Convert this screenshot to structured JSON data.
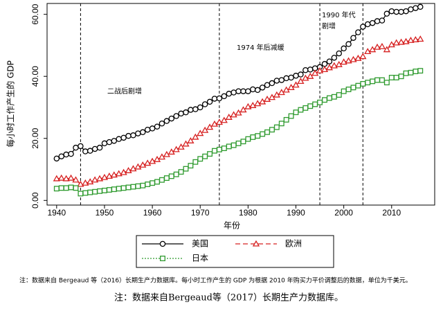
{
  "chart_data": {
    "type": "line",
    "y_label": "每小时工作产生的 GDP",
    "x_label": "年份",
    "x": [
      1940,
      1941,
      1942,
      1943,
      1944,
      1945,
      1946,
      1947,
      1948,
      1949,
      1950,
      1951,
      1952,
      1953,
      1954,
      1955,
      1956,
      1957,
      1958,
      1959,
      1960,
      1961,
      1962,
      1963,
      1964,
      1965,
      1966,
      1967,
      1968,
      1969,
      1970,
      1971,
      1972,
      1973,
      1974,
      1975,
      1976,
      1977,
      1978,
      1979,
      1980,
      1981,
      1982,
      1983,
      1984,
      1985,
      1986,
      1987,
      1988,
      1989,
      1990,
      1991,
      1992,
      1993,
      1994,
      1995,
      1996,
      1997,
      1998,
      1999,
      2000,
      2001,
      2002,
      2003,
      2004,
      2005,
      2006,
      2007,
      2008,
      2009,
      2010,
      2011,
      2012,
      2013,
      2014,
      2015,
      2016
    ],
    "series": [
      {
        "name": "美国",
        "color": "#000000",
        "marker": "circle",
        "dash": "solid",
        "values": [
          13.5,
          14.2,
          14.8,
          15.0,
          17.0,
          17.5,
          15.8,
          16.0,
          16.6,
          17.0,
          18.4,
          18.8,
          19.2,
          19.8,
          20.2,
          20.8,
          21.0,
          21.6,
          22.0,
          22.8,
          23.2,
          23.8,
          24.8,
          25.6,
          26.4,
          27.2,
          28.0,
          28.4,
          29.2,
          29.4,
          30.0,
          31.0,
          31.8,
          32.8,
          32.9,
          33.6,
          34.4,
          34.8,
          35.2,
          35.2,
          35.2,
          35.8,
          35.6,
          36.4,
          37.2,
          37.8,
          38.6,
          38.8,
          39.4,
          39.6,
          40.2,
          40.6,
          42.0,
          42.2,
          42.6,
          43.0,
          44.0,
          44.8,
          46.0,
          47.4,
          49.0,
          50.4,
          52.4,
          54.2,
          56.0,
          56.8,
          57.2,
          57.8,
          58.0,
          60.2,
          61.0,
          60.8,
          60.8,
          61.0,
          61.6,
          62.0,
          62.4
        ]
      },
      {
        "name": "欧洲",
        "color": "#d62020",
        "marker": "triangle",
        "dash": "dashed",
        "values": [
          7.0,
          7.2,
          7.0,
          7.2,
          6.6,
          5.2,
          5.6,
          6.0,
          6.6,
          7.0,
          7.4,
          7.8,
          8.2,
          8.6,
          9.0,
          9.6,
          10.2,
          10.8,
          11.4,
          12.0,
          12.6,
          13.2,
          14.0,
          14.8,
          15.6,
          16.4,
          17.2,
          18.2,
          19.2,
          20.4,
          21.6,
          22.6,
          23.6,
          24.6,
          25.2,
          25.8,
          26.8,
          27.6,
          28.2,
          29.2,
          30.2,
          30.6,
          31.2,
          31.8,
          32.6,
          33.2,
          34.0,
          34.8,
          35.6,
          36.4,
          37.2,
          38.4,
          39.4,
          40.0,
          41.0,
          41.8,
          42.2,
          42.8,
          43.4,
          43.8,
          44.6,
          45.0,
          45.4,
          45.8,
          46.4,
          48.0,
          48.6,
          49.4,
          49.6,
          48.6,
          50.2,
          50.8,
          51.0,
          51.2,
          51.6,
          51.8,
          52.0
        ]
      },
      {
        "name": "日本",
        "color": "#2e9a2e",
        "marker": "square",
        "dash": "dotted",
        "values": [
          3.8,
          4.0,
          4.0,
          4.2,
          4.0,
          2.2,
          2.4,
          2.6,
          2.8,
          3.0,
          3.2,
          3.4,
          3.6,
          3.8,
          4.0,
          4.2,
          4.4,
          4.6,
          4.8,
          5.2,
          5.6,
          6.0,
          6.6,
          7.2,
          7.8,
          8.4,
          9.2,
          10.2,
          11.2,
          12.4,
          13.4,
          14.2,
          15.0,
          16.0,
          16.4,
          16.8,
          17.4,
          17.8,
          18.4,
          19.0,
          19.8,
          20.4,
          20.8,
          21.4,
          22.0,
          22.8,
          23.6,
          24.8,
          26.0,
          27.2,
          28.4,
          29.2,
          29.8,
          30.4,
          31.0,
          31.6,
          32.4,
          33.0,
          33.4,
          34.0,
          35.2,
          35.8,
          36.4,
          37.0,
          37.6,
          38.0,
          38.4,
          38.8,
          38.8,
          38.0,
          39.6,
          39.6,
          40.0,
          41.0,
          41.2,
          41.6,
          41.8
        ]
      }
    ],
    "xlim": [
      1938,
      2019
    ],
    "ylim": [
      -1.5,
      63.5
    ],
    "xticks": [
      1940,
      1950,
      1960,
      1970,
      1980,
      1990,
      2000,
      2010
    ],
    "yticks": [
      {
        "value": 0,
        "label": "0.00"
      },
      {
        "value": 20,
        "label": "20.00"
      },
      {
        "value": 40,
        "label": "40.00"
      },
      {
        "value": 60,
        "label": "60.00"
      }
    ],
    "vlines": [
      1945,
      1974,
      1995,
      2004
    ],
    "annotations": [
      "二战后剧增",
      "1974 年后减缓",
      "1990 年代",
      "剧增"
    ]
  },
  "notes": [
    "注：数据来自 Bergeaud 等（2016）长期生产力数据库。每小时工作产生的 GDP 为根据 2010 年购买力平价调整后的数据，单位为千美元。",
    "注：数据来自Bergeaud等（2017）长期生产力数据库。"
  ]
}
